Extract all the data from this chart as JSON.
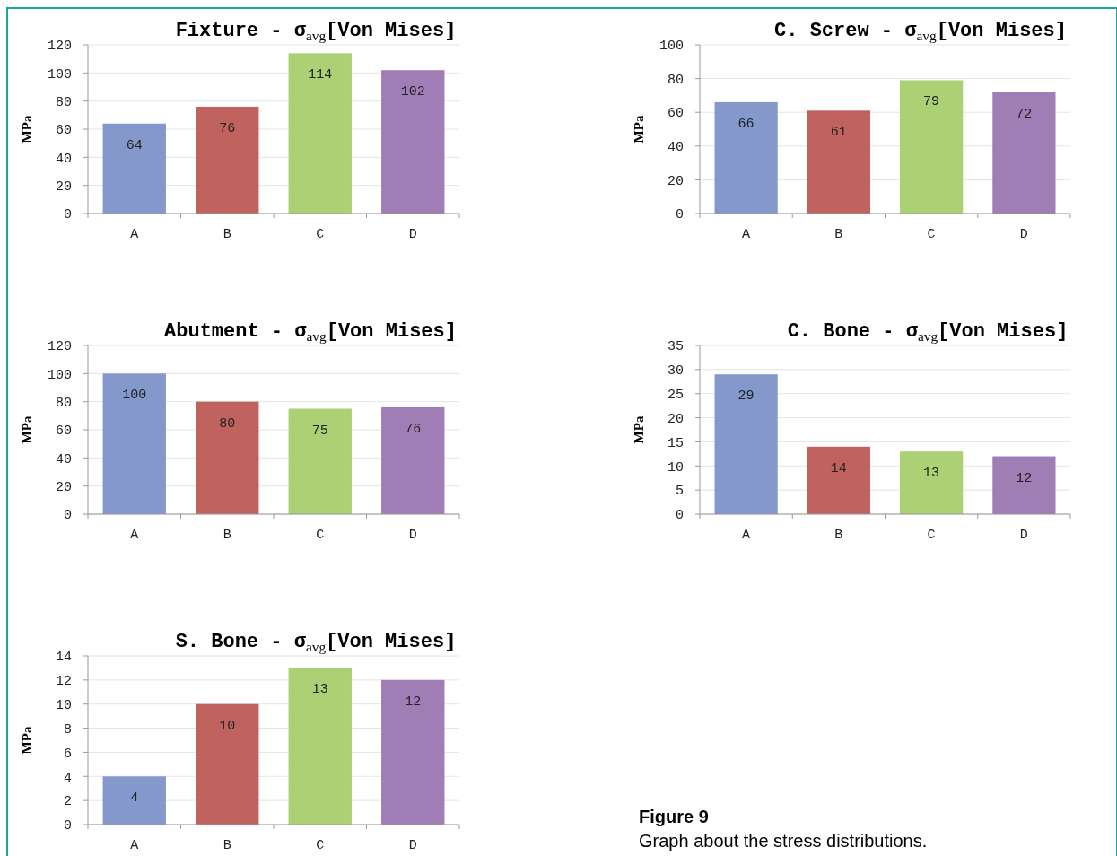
{
  "chart_data": [
    {
      "type": "bar",
      "title": "Fixture - σ$_{avg}$[Von Mises]",
      "ylabel": "MPa",
      "categories": [
        "A",
        "B",
        "C",
        "D"
      ],
      "values": [
        64,
        76,
        114,
        102
      ],
      "colors": [
        "#8598cc",
        "#c0625e",
        "#acd074",
        "#a17db5"
      ],
      "ylim": [
        0,
        120
      ],
      "yticks": [
        0,
        20,
        40,
        60,
        80,
        100,
        120
      ],
      "grid": "y",
      "data_labels": true
    },
    {
      "type": "bar",
      "title": "C. Screw - σ$_{avg}$[Von Mises]",
      "ylabel": "MPa",
      "categories": [
        "A",
        "B",
        "C",
        "D"
      ],
      "values": [
        66,
        61,
        79,
        72
      ],
      "colors": [
        "#8598cc",
        "#c0625e",
        "#acd074",
        "#a17db5"
      ],
      "ylim": [
        0,
        100
      ],
      "yticks": [
        0,
        20,
        40,
        60,
        80,
        100
      ],
      "grid": "y",
      "data_labels": true
    },
    {
      "type": "bar",
      "title": "Abutment - σ$_{avg}$[Von Mises]",
      "ylabel": "MPa",
      "categories": [
        "A",
        "B",
        "C",
        "D"
      ],
      "values": [
        100,
        80,
        75,
        76
      ],
      "colors": [
        "#8598cc",
        "#c0625e",
        "#acd074",
        "#a17db5"
      ],
      "ylim": [
        0,
        120
      ],
      "yticks": [
        0,
        20,
        40,
        60,
        80,
        100,
        120
      ],
      "grid": "y",
      "data_labels": true
    },
    {
      "type": "bar",
      "title": "C. Bone - σ$_{avg}$[Von Mises]",
      "ylabel": "MPa",
      "categories": [
        "A",
        "B",
        "C",
        "D"
      ],
      "values": [
        29,
        14,
        13,
        12
      ],
      "colors": [
        "#8598cc",
        "#c0625e",
        "#acd074",
        "#a17db5"
      ],
      "ylim": [
        0,
        35
      ],
      "yticks": [
        0,
        5,
        10,
        15,
        20,
        25,
        30,
        35
      ],
      "grid": "y",
      "data_labels": true
    },
    {
      "type": "bar",
      "title": "S. Bone - σ$_{avg}$[Von Mises]",
      "ylabel": "MPa",
      "categories": [
        "A",
        "B",
        "C",
        "D"
      ],
      "values": [
        4,
        10,
        13,
        12
      ],
      "colors": [
        "#8598cc",
        "#c0625e",
        "#acd074",
        "#a17db5"
      ],
      "ylim": [
        0,
        14
      ],
      "yticks": [
        0,
        2,
        4,
        6,
        8,
        10,
        12,
        14
      ],
      "grid": "y",
      "data_labels": true
    },
    {
      "type": "other",
      "title": "Figure 9",
      "annotations": [
        "Graph about the stress distributions."
      ]
    }
  ]
}
